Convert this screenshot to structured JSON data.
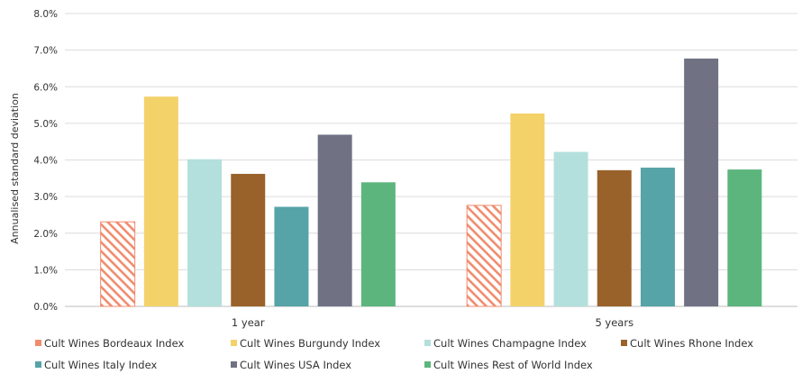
{
  "chart_data": {
    "type": "bar",
    "ylabel": "Annualised standard deviation",
    "ylim": [
      0,
      0.08
    ],
    "yticks": [
      "0.0%",
      "1.0%",
      "2.0%",
      "3.0%",
      "4.0%",
      "5.0%",
      "6.0%",
      "7.0%",
      "8.0%"
    ],
    "categories": [
      "1 year",
      "5 years"
    ],
    "grid": true,
    "legend_position": "bottom",
    "series": [
      {
        "name": "Cult Wines Bordeaux Index",
        "color": "#f08c6e",
        "pattern": "hatched",
        "values": [
          0.0231,
          0.0276
        ]
      },
      {
        "name": "Cult Wines Burgundy Index",
        "color": "#f4d26a",
        "values": [
          0.0573,
          0.0527
        ]
      },
      {
        "name": "Cult Wines Champagne Index",
        "color": "#b3e0dc",
        "values": [
          0.0402,
          0.0422
        ]
      },
      {
        "name": "Cult Wines Rhone Index",
        "color": "#99622a",
        "values": [
          0.0362,
          0.0372
        ]
      },
      {
        "name": "Cult Wines Italy Index",
        "color": "#56a3a8",
        "values": [
          0.0272,
          0.0379
        ]
      },
      {
        "name": "Cult Wines USA Index",
        "color": "#707284",
        "values": [
          0.0469,
          0.0677
        ]
      },
      {
        "name": "Cult Wines Rest of World Index",
        "color": "#5db57e",
        "values": [
          0.0339,
          0.0374
        ]
      }
    ]
  }
}
